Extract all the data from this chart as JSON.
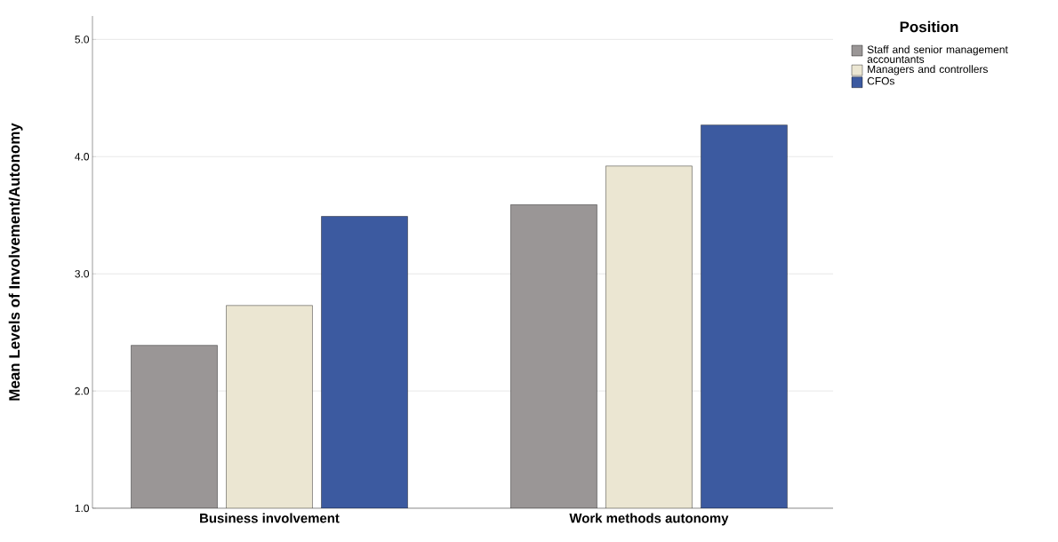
{
  "chart_data": {
    "type": "bar",
    "ylabel": "Mean Levels of Involvement/Autonomy",
    "legend_title": "Position",
    "categories": [
      "Business involvement",
      "Work methods autonomy"
    ],
    "series": [
      {
        "name": "Staff and senior management accountants",
        "color": "#9a9696",
        "values": [
          2.39,
          3.59
        ]
      },
      {
        "name": "Managers and controllers",
        "color": "#ebe6d2",
        "values": [
          2.73,
          3.92
        ]
      },
      {
        "name": "CFOs",
        "color": "#3c5aa0",
        "values": [
          3.49,
          4.27
        ]
      }
    ],
    "ylim": [
      1,
      5.2
    ],
    "yticks": [
      {
        "value": 1,
        "label": "1.0"
      },
      {
        "value": 2,
        "label": "2.0"
      },
      {
        "value": 3,
        "label": "3.0"
      },
      {
        "value": 4,
        "label": "4.0"
      },
      {
        "value": 5,
        "label": "5.0"
      }
    ],
    "grid": "y",
    "legend": "right"
  }
}
